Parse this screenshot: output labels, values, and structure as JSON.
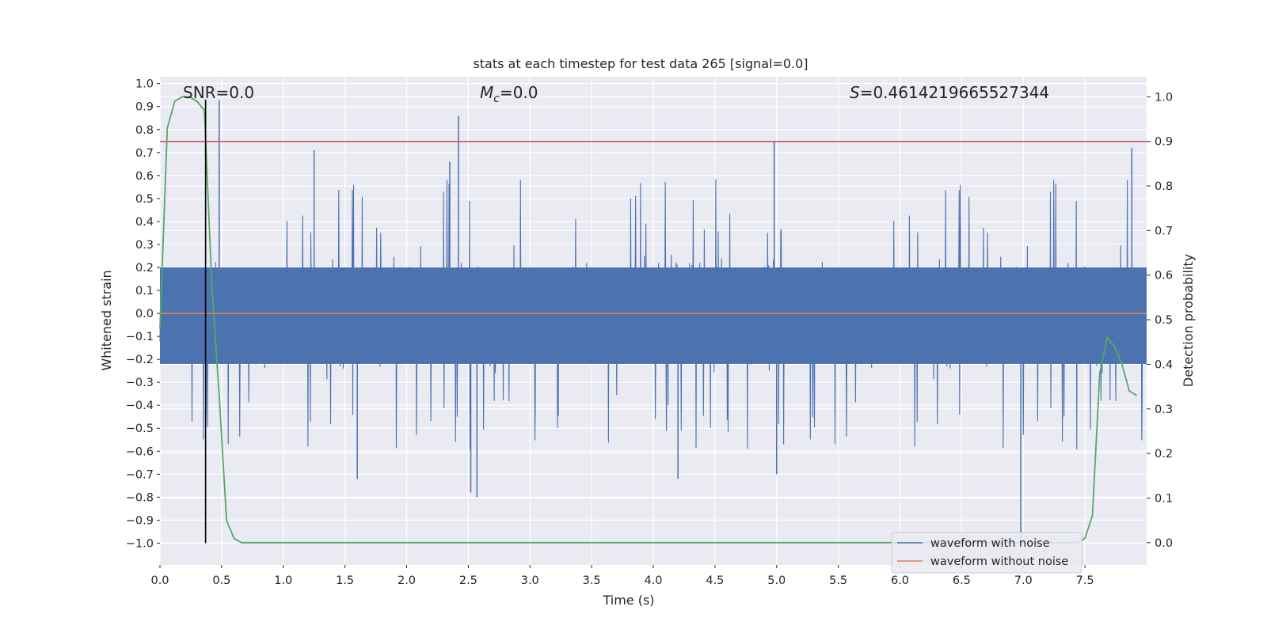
{
  "chart_data": {
    "type": "line",
    "title": "stats at each timestep for test data 265 [signal=0.0]",
    "xlabel": "Time (s)",
    "ylabel": "Whitened strain",
    "ylabel_right": "Detection probability",
    "xlim": [
      0,
      8
    ],
    "ylim": [
      -1.095,
      1.03
    ],
    "ylim_right": [
      -0.05,
      1.045
    ],
    "xticks": [
      "0.0",
      "0.5",
      "1.0",
      "1.5",
      "2.0",
      "2.5",
      "3.0",
      "3.5",
      "4.0",
      "4.5",
      "5.0",
      "5.5",
      "6.0",
      "6.5",
      "7.0",
      "7.5"
    ],
    "yticks": [
      "1.0",
      "0.9",
      "0.8",
      "0.7",
      "0.6",
      "0.5",
      "0.4",
      "0.3",
      "0.2",
      "0.1",
      "0.0",
      "−0.1",
      "−0.2",
      "−0.3",
      "−0.4",
      "−0.5",
      "−0.6",
      "−0.7",
      "−0.8",
      "−0.9",
      "−1.0"
    ],
    "yticks_right": [
      "1.0",
      "0.9",
      "0.8",
      "0.7",
      "0.6",
      "0.5",
      "0.4",
      "0.3",
      "0.2",
      "0.1",
      "0.0"
    ],
    "grid": true,
    "legend_position": "bottom-right",
    "annotations": {
      "snr": "SNR=0.0",
      "mc_symbol": "M",
      "mc_subscript": "c",
      "mc_value": "=0.0",
      "s_symbol": "S",
      "s_value": "=0.4614219665527344"
    },
    "series": [
      {
        "name": "waveform with noise",
        "color": "#4c72b0",
        "axis": "left",
        "kind": "noise",
        "envelope": 0.3,
        "spikes_positive": [
          [
            0.48,
            0.93
          ],
          [
            2.42,
            0.86
          ],
          [
            4.98,
            0.75
          ],
          [
            7.88,
            0.72
          ],
          [
            1.25,
            0.71
          ],
          [
            2.35,
            0.66
          ]
        ],
        "spikes_negative": [
          [
            6.98,
            -0.99
          ],
          [
            2.57,
            -0.8
          ],
          [
            2.52,
            -0.78
          ],
          [
            1.6,
            -0.72
          ],
          [
            4.2,
            -0.72
          ],
          [
            5.0,
            -0.7
          ]
        ]
      },
      {
        "name": "waveform without noise",
        "color": "#dd8452",
        "axis": "left",
        "x": [
          0,
          8
        ],
        "y": [
          0,
          0
        ]
      },
      {
        "color": "#55a868",
        "axis": "right",
        "x": [
          0.0,
          0.06,
          0.12,
          0.18,
          0.24,
          0.3,
          0.36,
          0.42,
          0.48,
          0.54,
          0.6,
          0.66,
          0.72,
          7.44,
          7.5,
          7.56,
          7.62,
          7.68,
          7.74,
          7.8,
          7.86,
          7.92
        ],
        "y": [
          0.48,
          0.93,
          0.99,
          1.0,
          1.0,
          0.99,
          0.97,
          0.58,
          0.33,
          0.05,
          0.01,
          0.0,
          0.0,
          0.0,
          0.01,
          0.06,
          0.38,
          0.46,
          0.44,
          0.4,
          0.34,
          0.33
        ]
      }
    ],
    "threshold_line": {
      "color": "#c44e52",
      "value": 0.9,
      "axis": "right"
    },
    "marker_line": {
      "color": "#000000",
      "x": 0.37,
      "y_from": -1.0,
      "y_to": 0.93
    }
  }
}
